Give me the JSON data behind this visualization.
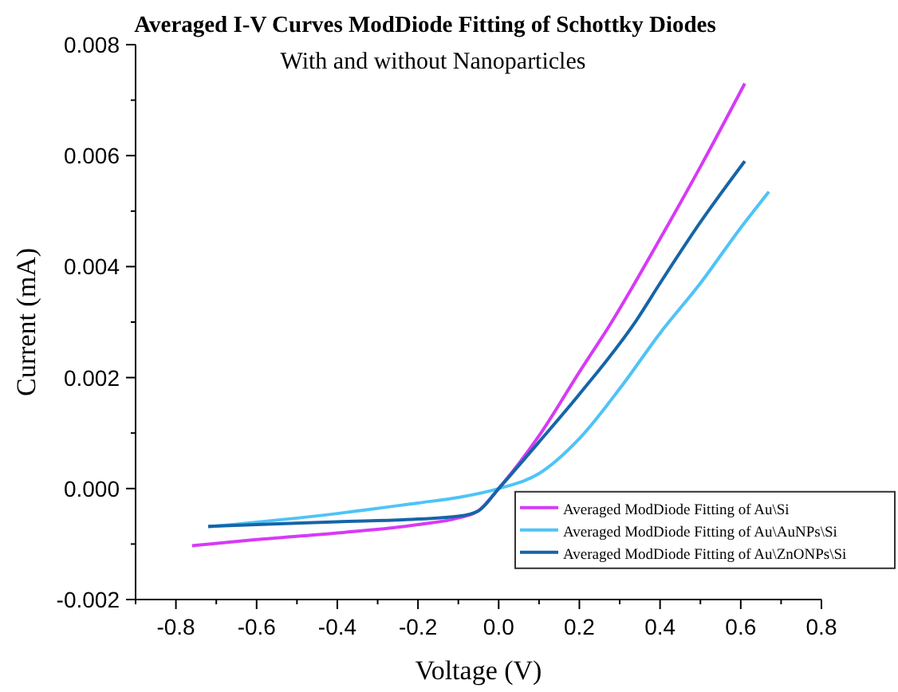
{
  "chart_data": {
    "type": "line",
    "title": "Averaged I-V Curves ModDiode Fitting of Schottky Diodes",
    "subtitle": "With and without Nanoparticles",
    "xlabel": "Voltage (V)",
    "ylabel": "Current (mA)",
    "xlim": [
      -0.9,
      0.8
    ],
    "ylim": [
      -0.002,
      0.008
    ],
    "xticks": [
      {
        "value": -0.9,
        "label": null
      },
      -0.8,
      {
        "value": -0.7,
        "label": null
      },
      -0.6,
      {
        "value": -0.5,
        "label": null
      },
      -0.4,
      {
        "value": -0.3,
        "label": null
      },
      -0.2,
      {
        "value": -0.1,
        "label": null
      },
      {
        "value": 0,
        "label": "0.0"
      },
      {
        "value": 0.1,
        "label": null
      },
      0.2,
      {
        "value": 0.3,
        "label": null
      },
      0.4,
      {
        "value": 0.5,
        "label": null
      },
      0.6,
      {
        "value": 0.7,
        "label": null
      },
      0.8
    ],
    "yticks": [
      -0.002,
      {
        "value": -0.001,
        "label": null
      },
      {
        "value": 0,
        "label": "0.000"
      },
      {
        "value": 0.001,
        "label": null
      },
      0.002,
      {
        "value": 0.003,
        "label": null
      },
      0.004,
      {
        "value": 0.005,
        "label": null
      },
      0.006,
      {
        "value": 0.007,
        "label": null
      },
      0.008
    ],
    "grid": false,
    "legend": "right",
    "marker": "none",
    "line_style": "solid",
    "series": [
      {
        "name": "Averaged ModDiode Fitting of Au\\Si",
        "color": "#d63af7",
        "x": [
          -0.76,
          -0.6,
          -0.4,
          -0.2,
          -0.1,
          -0.05,
          0,
          0.1,
          0.2,
          0.28,
          0.4,
          0.5,
          0.61
        ],
        "values": [
          -0.00103,
          -0.00092,
          -0.0008,
          -0.00065,
          -0.00053,
          -0.0004,
          0,
          0.00095,
          0.0021,
          0.003,
          0.0045,
          0.0058,
          0.0073
        ]
      },
      {
        "name": "Averaged ModDiode Fitting of Au\\AuNPs\\Si",
        "color": "#4fc3f7",
        "x": [
          -0.72,
          -0.4,
          -0.2,
          -0.1,
          0,
          0.1,
          0.2,
          0.3,
          0.4,
          0.5,
          0.6,
          0.67
        ],
        "values": [
          -0.00069,
          -0.00045,
          -0.00026,
          -0.00016,
          0,
          0.00027,
          0.0009,
          0.0018,
          0.0028,
          0.0037,
          0.0047,
          0.00535
        ]
      },
      {
        "name": "Averaged ModDiode Fitting of Au\\ZnONPs\\Si",
        "color": "#1565a8",
        "x": [
          -0.72,
          -0.4,
          -0.2,
          -0.1,
          -0.05,
          0,
          0.1,
          0.2,
          0.343,
          0.4,
          0.5,
          0.61
        ],
        "values": [
          -0.00068,
          -0.0006,
          -0.00055,
          -0.0005,
          -0.0004,
          0,
          0.00084,
          0.0017,
          0.00305,
          0.0037,
          0.0048,
          0.0059
        ]
      }
    ]
  }
}
